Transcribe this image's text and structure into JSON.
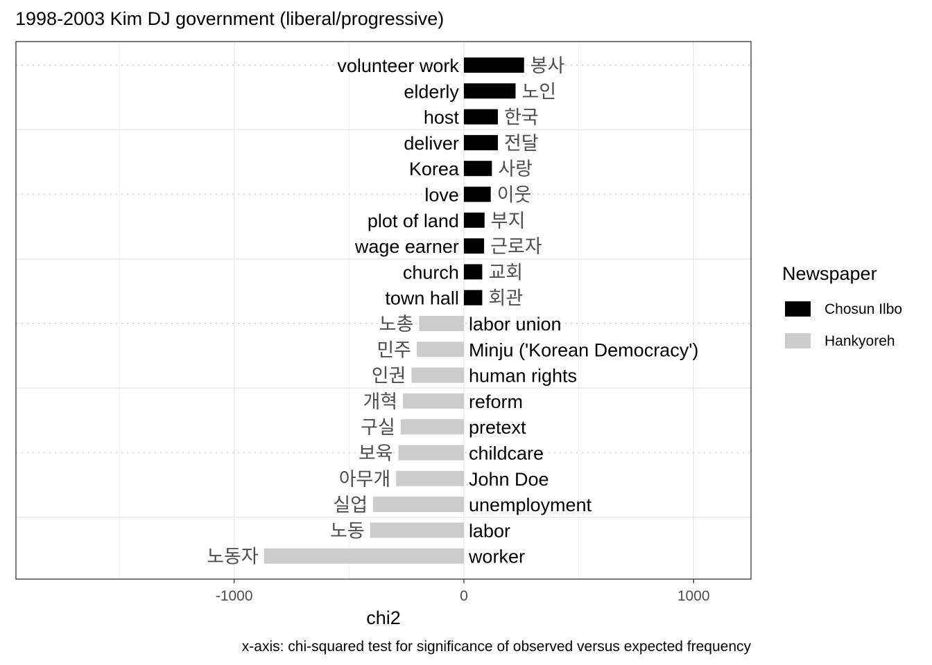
{
  "chart_data": {
    "type": "bar",
    "orientation": "horizontal",
    "title": "1998-2003 Kim DJ government (liberal/progressive)",
    "xlabel": "chi2",
    "caption": "x-axis: chi-squared test for significance of observed versus expected frequency",
    "xlim": [
      -1950,
      1250
    ],
    "x_ticks": [
      {
        "value": -1000,
        "label": "-1000"
      },
      {
        "value": 0,
        "label": "0"
      },
      {
        "value": 1000,
        "label": "1000"
      }
    ],
    "legend": {
      "title": "Newspaper",
      "placement": "right",
      "entries": [
        {
          "name": "Chosun Ilbo",
          "color": "#000000"
        },
        {
          "name": "Hankyoreh",
          "color": "#cccccc"
        }
      ]
    },
    "colors": {
      "Chosun Ilbo": "#000000",
      "Hankyoreh": "#cccccc"
    },
    "bars": [
      {
        "english": "volunteer work",
        "korean": "봉사",
        "value": 262,
        "newspaper": "Chosun Ilbo"
      },
      {
        "english": "elderly",
        "korean": "노인",
        "value": 225,
        "newspaper": "Chosun Ilbo"
      },
      {
        "english": "host",
        "korean": "한국",
        "value": 148,
        "newspaper": "Chosun Ilbo"
      },
      {
        "english": "deliver",
        "korean": "전달",
        "value": 148,
        "newspaper": "Chosun Ilbo"
      },
      {
        "english": "Korea",
        "korean": "사랑",
        "value": 122,
        "newspaper": "Chosun Ilbo"
      },
      {
        "english": "love",
        "korean": "이웃",
        "value": 117,
        "newspaper": "Chosun Ilbo"
      },
      {
        "english": "plot of land",
        "korean": "부지",
        "value": 90,
        "newspaper": "Chosun Ilbo"
      },
      {
        "english": "wage earner",
        "korean": "근로자",
        "value": 88,
        "newspaper": "Chosun Ilbo"
      },
      {
        "english": "church",
        "korean": "교회",
        "value": 80,
        "newspaper": "Chosun Ilbo"
      },
      {
        "english": "town hall",
        "korean": "회관",
        "value": 80,
        "newspaper": "Chosun Ilbo"
      },
      {
        "english": "labor union",
        "korean": "노총",
        "value": -195,
        "newspaper": "Hankyoreh"
      },
      {
        "english": "Minju ('Korean Democracy')",
        "korean": "민주",
        "value": -205,
        "newspaper": "Hankyoreh"
      },
      {
        "english": "human rights",
        "korean": "인권",
        "value": -228,
        "newspaper": "Hankyoreh"
      },
      {
        "english": "reform",
        "korean": "개혁",
        "value": -265,
        "newspaper": "Hankyoreh"
      },
      {
        "english": "pretext",
        "korean": "구실",
        "value": -275,
        "newspaper": "Hankyoreh"
      },
      {
        "english": "childcare",
        "korean": "보육",
        "value": -285,
        "newspaper": "Hankyoreh"
      },
      {
        "english": "John Doe",
        "korean": "아무개",
        "value": -295,
        "newspaper": "Hankyoreh"
      },
      {
        "english": "unemployment",
        "korean": "실업",
        "value": -395,
        "newspaper": "Hankyoreh"
      },
      {
        "english": "labor",
        "korean": "노동",
        "value": -408,
        "newspaper": "Hankyoreh"
      },
      {
        "english": "worker",
        "korean": "노동자",
        "value": -870,
        "newspaper": "Hankyoreh"
      }
    ]
  }
}
